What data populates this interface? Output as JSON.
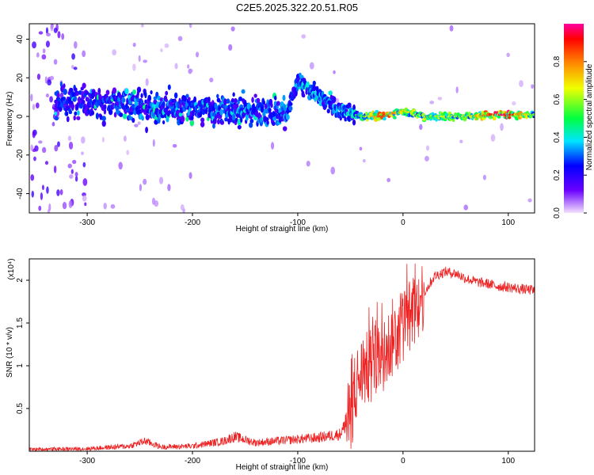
{
  "title": "C2E5.2025.322.20.51.R05",
  "chart_data": [
    {
      "type": "heatmap",
      "xlabel": "Height of straight line (km)",
      "ylabel": "Frequency (Hz)",
      "xlim": [
        -355,
        125
      ],
      "ylim": [
        -50,
        48
      ],
      "xticks": [
        -300,
        -200,
        -100,
        0,
        100
      ],
      "yticks": [
        -40,
        -20,
        0,
        20,
        40
      ],
      "colorbar": {
        "label": "Normalized spectral amplitude",
        "range": [
          0,
          1
        ],
        "ticks": [
          0.0,
          0.2,
          0.4,
          0.6,
          0.8
        ],
        "colors": [
          "#f3e2fb",
          "#6a00ff",
          "#0000ff",
          "#00e5ff",
          "#00ff40",
          "#f0ff00",
          "#ff8000",
          "#ff0000",
          "#ff00a0"
        ]
      },
      "ridge": [
        {
          "x": -300,
          "y": 8,
          "amp": 0.25
        },
        {
          "x": -250,
          "y": 5,
          "amp": 0.3
        },
        {
          "x": -200,
          "y": 4,
          "amp": 0.3
        },
        {
          "x": -150,
          "y": 3,
          "amp": 0.3
        },
        {
          "x": -110,
          "y": 2,
          "amp": 0.3
        },
        {
          "x": -100,
          "y": 18,
          "amp": 0.35
        },
        {
          "x": -80,
          "y": 10,
          "amp": 0.35
        },
        {
          "x": -60,
          "y": 3,
          "amp": 0.3
        },
        {
          "x": -40,
          "y": 0,
          "amp": 0.45
        },
        {
          "x": -20,
          "y": 0,
          "amp": 0.8
        },
        {
          "x": 0,
          "y": 3,
          "amp": 0.6
        },
        {
          "x": 20,
          "y": 0,
          "amp": 0.55
        },
        {
          "x": 60,
          "y": 0,
          "amp": 0.55
        },
        {
          "x": 95,
          "y": 1,
          "amp": 0.9
        },
        {
          "x": 125,
          "y": 1,
          "amp": 0.5
        }
      ]
    },
    {
      "type": "line",
      "xlabel": "Height of straight line (km)",
      "ylabel": "SNR (10 * v/v)",
      "multiplier": "(x10⁴)",
      "xlim": [
        -355,
        125
      ],
      "ylim": [
        0,
        2.25
      ],
      "xticks": [
        -300,
        -200,
        -100,
        0,
        100
      ],
      "yticks": [
        0.5,
        1.0,
        1.5,
        2.0
      ],
      "series": [
        {
          "name": "SNR",
          "color": "#ee2222",
          "x": [
            -355,
            -300,
            -260,
            -245,
            -230,
            -200,
            -170,
            -160,
            -140,
            -120,
            -100,
            -80,
            -60,
            -50,
            -45,
            -40,
            -30,
            -20,
            -10,
            0,
            10,
            20,
            30,
            40,
            50,
            60,
            70,
            80,
            90,
            100,
            110,
            125
          ],
          "y": [
            0.02,
            0.03,
            0.06,
            0.12,
            0.05,
            0.06,
            0.12,
            0.17,
            0.1,
            0.12,
            0.14,
            0.16,
            0.2,
            0.4,
            0.75,
            0.9,
            1.0,
            1.1,
            1.3,
            1.5,
            1.6,
            1.85,
            2.05,
            2.1,
            2.08,
            2.02,
            1.98,
            1.96,
            1.93,
            1.92,
            1.9,
            1.88
          ]
        }
      ]
    }
  ]
}
